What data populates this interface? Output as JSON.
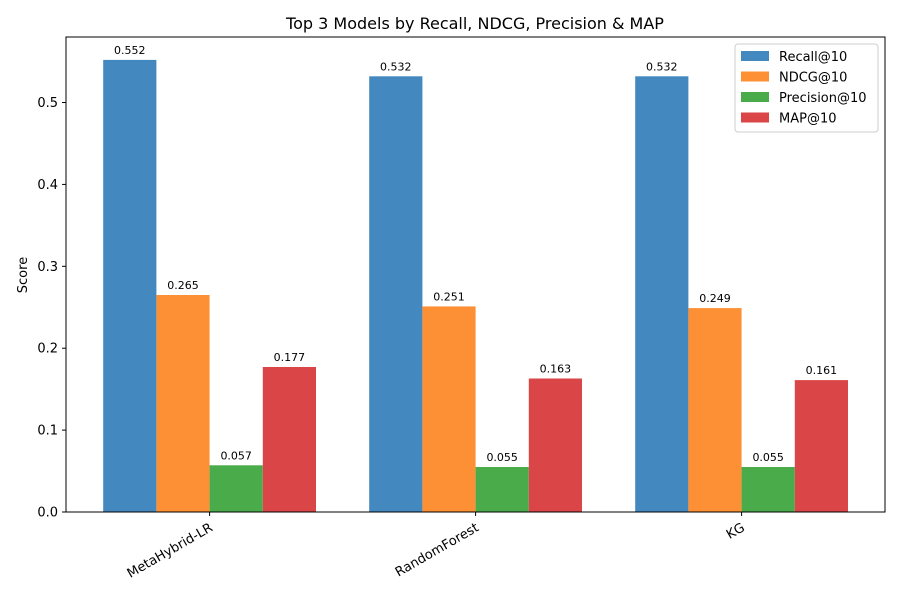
{
  "chart_data": {
    "type": "bar",
    "title": "Top 3 Models by Recall, NDCG, Precision & MAP",
    "xlabel": "",
    "ylabel": "Score",
    "ylim": [
      0,
      0.58
    ],
    "yticks": [
      "0.0",
      "0.1",
      "0.2",
      "0.3",
      "0.4",
      "0.5"
    ],
    "categories": [
      "MetaHybrid-LR",
      "RandomForest",
      "KG"
    ],
    "series": [
      {
        "name": "Recall@10",
        "color": "#4389bf",
        "values": [
          0.552,
          0.532,
          0.532
        ],
        "labels": [
          "0.552",
          "0.532",
          "0.532"
        ]
      },
      {
        "name": "NDCG@10",
        "color": "#fd9035",
        "values": [
          0.265,
          0.251,
          0.249
        ],
        "labels": [
          "0.265",
          "0.251",
          "0.249"
        ]
      },
      {
        "name": "Precision@10",
        "color": "#4aab4a",
        "values": [
          0.057,
          0.055,
          0.055
        ],
        "labels": [
          "0.057",
          "0.055",
          "0.055"
        ]
      },
      {
        "name": "MAP@10",
        "color": "#da4648",
        "values": [
          0.177,
          0.163,
          0.161
        ],
        "labels": [
          "0.177",
          "0.163",
          "0.161"
        ]
      }
    ],
    "legend": "top-right",
    "grid": false
  }
}
